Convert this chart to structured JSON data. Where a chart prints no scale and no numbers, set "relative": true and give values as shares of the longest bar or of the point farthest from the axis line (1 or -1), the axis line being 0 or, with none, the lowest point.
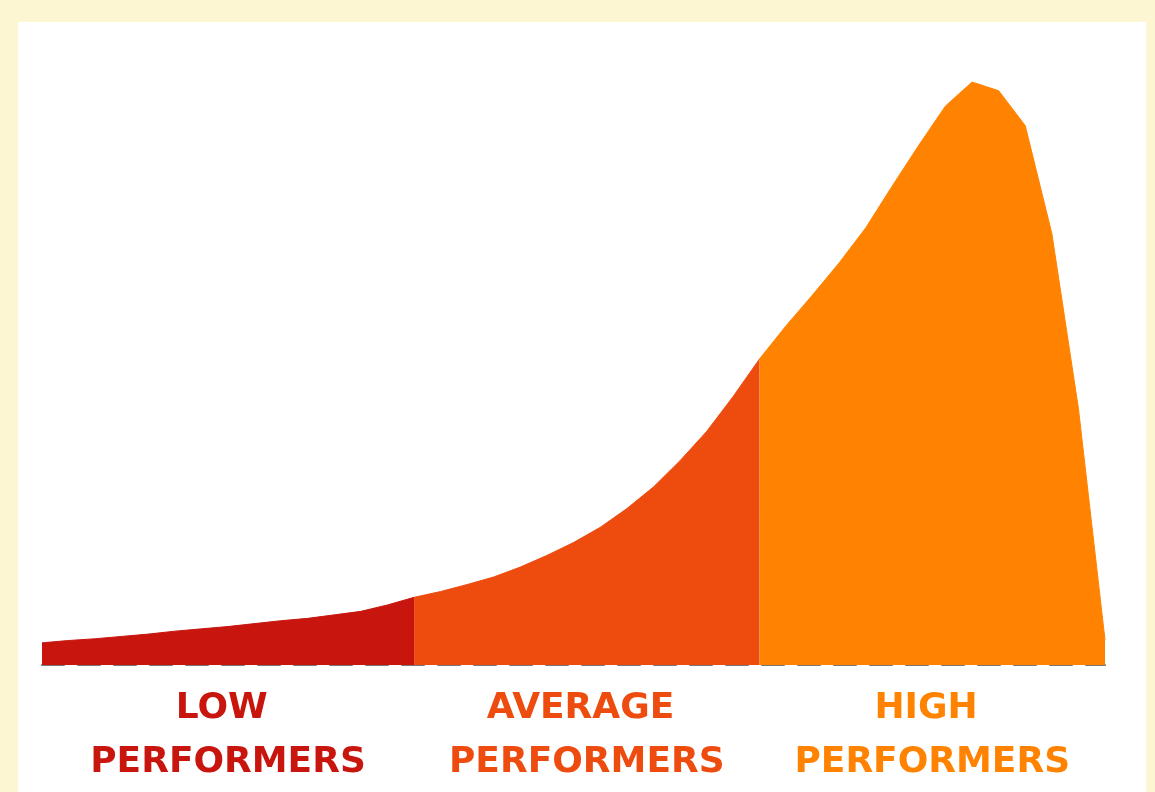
{
  "chart_data": {
    "type": "area",
    "relative": true,
    "legend": false,
    "grid": false,
    "marker": "none",
    "categories": [
      null,
      null,
      null,
      null,
      null,
      null,
      null,
      null,
      null,
      null,
      null,
      null,
      null,
      null,
      null,
      null,
      null,
      null,
      null,
      null,
      null,
      null,
      null,
      null,
      null,
      null,
      null,
      null,
      null,
      null,
      null,
      null,
      null,
      null,
      null,
      null,
      null,
      null,
      null,
      null,
      null
    ],
    "series": [
      {
        "name": "LOW PERFORMERS",
        "color": "#c8160f",
        "values": [
          0.038,
          0.042,
          0.045,
          0.049,
          0.053,
          0.058,
          0.062,
          0.066,
          0.071,
          0.076,
          0.08,
          0.086,
          0.092,
          0.103,
          0.116,
          null,
          null,
          null,
          null,
          null,
          null,
          null,
          null,
          null,
          null,
          null,
          null,
          null,
          null,
          null,
          null,
          null,
          null,
          null,
          null,
          null,
          null,
          null,
          null,
          null,
          null
        ]
      },
      {
        "name": "AVERAGE PERFORMERS",
        "color": "#ee4b0f",
        "values": [
          null,
          null,
          null,
          null,
          null,
          null,
          null,
          null,
          null,
          null,
          null,
          null,
          null,
          null,
          0.116,
          0.126,
          0.138,
          0.151,
          0.168,
          0.188,
          0.21,
          0.236,
          0.268,
          0.305,
          0.35,
          0.4,
          0.46,
          0.525,
          null,
          null,
          null,
          null,
          null,
          null,
          null,
          null,
          null,
          null,
          null,
          null,
          null
        ]
      },
      {
        "name": "HIGH PERFORMERS",
        "color": "#ff8300",
        "values": [
          null,
          null,
          null,
          null,
          null,
          null,
          null,
          null,
          null,
          null,
          null,
          null,
          null,
          null,
          null,
          null,
          null,
          null,
          null,
          null,
          null,
          null,
          null,
          null,
          null,
          null,
          null,
          0.525,
          0.582,
          0.635,
          0.69,
          0.75,
          0.822,
          0.892,
          0.959,
          1.0,
          0.985,
          0.925,
          0.74,
          0.44,
          0.043
        ]
      }
    ]
  }
}
